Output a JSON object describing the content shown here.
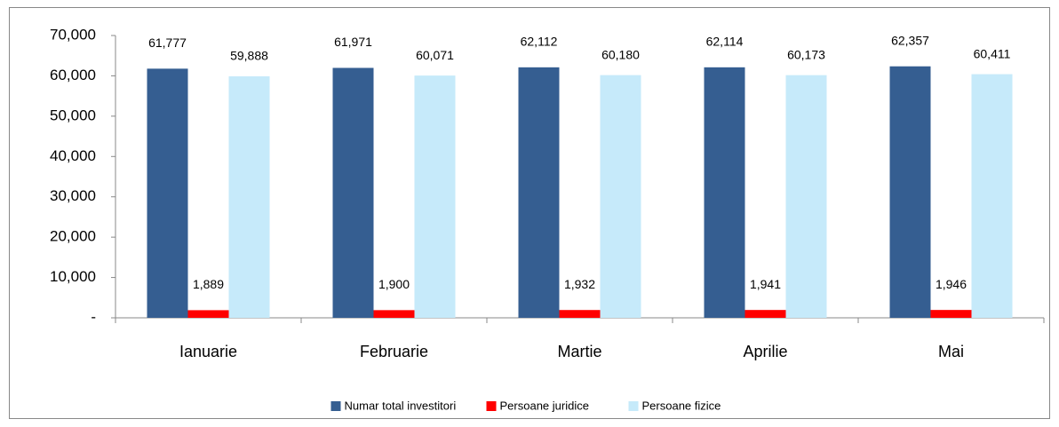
{
  "chart_data": {
    "type": "bar",
    "categories": [
      "Ianuarie",
      "Februarie",
      "Martie",
      "Aprilie",
      "Mai"
    ],
    "series": [
      {
        "name": "Numar total investitori",
        "color": "#355e91",
        "values": [
          61777,
          61971,
          62112,
          62114,
          62357
        ],
        "value_labels": [
          "61,777",
          "61,971",
          "62,112",
          "62,114",
          "62,357"
        ]
      },
      {
        "name": "Persoane juridice",
        "color": "#ff0000",
        "values": [
          1889,
          1900,
          1932,
          1941,
          1946
        ],
        "value_labels": [
          "1,889",
          "1,900",
          "1,932",
          "1,941",
          "1,946"
        ]
      },
      {
        "name": "Persoane fizice",
        "color": "#c6eafa",
        "values": [
          59888,
          60071,
          60180,
          60173,
          60411
        ],
        "value_labels": [
          "59,888",
          "60,071",
          "60,180",
          "60,173",
          "60,411"
        ]
      }
    ],
    "ylim": [
      0,
      70000
    ],
    "yticks": [
      {
        "value": 0,
        "label": "-"
      },
      {
        "value": 10000,
        "label": "10,000"
      },
      {
        "value": 20000,
        "label": "20,000"
      },
      {
        "value": 30000,
        "label": "30,000"
      },
      {
        "value": 40000,
        "label": "40,000"
      },
      {
        "value": 50000,
        "label": "50,000"
      },
      {
        "value": 60000,
        "label": "60,000"
      },
      {
        "value": 70000,
        "label": "70,000"
      }
    ],
    "legend": "bottom"
  }
}
